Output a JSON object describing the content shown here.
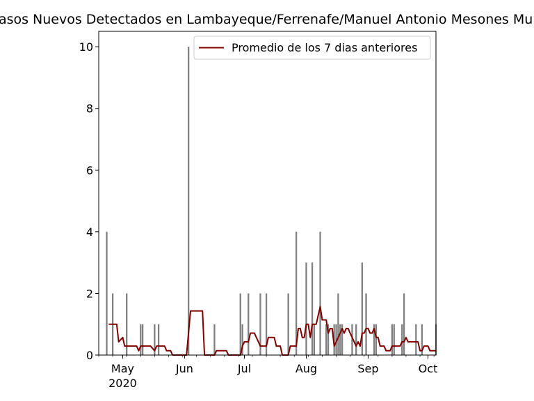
{
  "chart_data": {
    "type": "bar",
    "title": "Casos Nuevos Detectados en Lambayeque/Ferrenafe/Manuel Antonio Mesones Muro",
    "xlabel": "",
    "ylabel": "",
    "x_range": [
      "2020-04-19",
      "2020-10-05"
    ],
    "ylim": [
      0,
      10.5
    ],
    "y_ticks": [
      "0",
      "2",
      "4",
      "6",
      "8",
      "10"
    ],
    "x_ticks": [
      {
        "date": "2020-05-01",
        "label": "May",
        "sublabel": "2020"
      },
      {
        "date": "2020-06-01",
        "label": "Jun",
        "sublabel": ""
      },
      {
        "date": "2020-07-01",
        "label": "Jul",
        "sublabel": ""
      },
      {
        "date": "2020-08-01",
        "label": "Aug",
        "sublabel": ""
      },
      {
        "date": "2020-09-01",
        "label": "Sep",
        "sublabel": ""
      },
      {
        "date": "2020-10-01",
        "label": "Oct",
        "sublabel": ""
      }
    ],
    "bar_color": "#808080",
    "line_color": "#800000",
    "legend": {
      "position": "upper right",
      "entries": [
        "Promedio de los 7 dias anteriores"
      ]
    },
    "series": [
      {
        "type": "bar",
        "points": [
          [
            "2020-04-23",
            4
          ],
          [
            "2020-04-26",
            2
          ],
          [
            "2020-05-03",
            2
          ],
          [
            "2020-05-10",
            1
          ],
          [
            "2020-05-11",
            1
          ],
          [
            "2020-05-17",
            1
          ],
          [
            "2020-05-19",
            1
          ],
          [
            "2020-06-03",
            10
          ],
          [
            "2020-06-16",
            1
          ],
          [
            "2020-06-29",
            2
          ],
          [
            "2020-06-30",
            1
          ],
          [
            "2020-07-03",
            2
          ],
          [
            "2020-07-09",
            2
          ],
          [
            "2020-07-12",
            2
          ],
          [
            "2020-07-23",
            2
          ],
          [
            "2020-07-27",
            4
          ],
          [
            "2020-08-01",
            3
          ],
          [
            "2020-08-04",
            3
          ],
          [
            "2020-08-05",
            1
          ],
          [
            "2020-08-08",
            4
          ],
          [
            "2020-08-11",
            1
          ],
          [
            "2020-08-12",
            1
          ],
          [
            "2020-08-15",
            1
          ],
          [
            "2020-08-16",
            1
          ],
          [
            "2020-08-17",
            2
          ],
          [
            "2020-08-18",
            1
          ],
          [
            "2020-08-19",
            1
          ],
          [
            "2020-08-24",
            1
          ],
          [
            "2020-08-26",
            1
          ],
          [
            "2020-08-29",
            3
          ],
          [
            "2020-08-31",
            2
          ],
          [
            "2020-09-04",
            1
          ],
          [
            "2020-09-05",
            1
          ],
          [
            "2020-09-13",
            1
          ],
          [
            "2020-09-14",
            1
          ],
          [
            "2020-09-18",
            1
          ],
          [
            "2020-09-19",
            2
          ],
          [
            "2020-09-25",
            1
          ],
          [
            "2020-09-28",
            1
          ],
          [
            "2020-10-05",
            1
          ]
        ]
      },
      {
        "type": "line",
        "name": "Promedio de los 7 dias anteriores",
        "points": [
          [
            "2020-04-24",
            1.0
          ],
          [
            "2020-04-28",
            1.0
          ],
          [
            "2020-04-29",
            0.43
          ],
          [
            "2020-05-01",
            0.57
          ],
          [
            "2020-05-02",
            0.29
          ],
          [
            "2020-05-08",
            0.29
          ],
          [
            "2020-05-09",
            0.14
          ],
          [
            "2020-05-10",
            0.29
          ],
          [
            "2020-05-15",
            0.29
          ],
          [
            "2020-05-17",
            0.14
          ],
          [
            "2020-05-18",
            0.29
          ],
          [
            "2020-05-22",
            0.29
          ],
          [
            "2020-05-23",
            0.14
          ],
          [
            "2020-05-25",
            0.14
          ],
          [
            "2020-05-26",
            0.0
          ],
          [
            "2020-06-02",
            0.0
          ],
          [
            "2020-06-04",
            1.43
          ],
          [
            "2020-06-10",
            1.43
          ],
          [
            "2020-06-11",
            0.0
          ],
          [
            "2020-06-16",
            0.0
          ],
          [
            "2020-06-17",
            0.14
          ],
          [
            "2020-06-22",
            0.14
          ],
          [
            "2020-06-23",
            0.0
          ],
          [
            "2020-06-29",
            0.0
          ],
          [
            "2020-06-30",
            0.29
          ],
          [
            "2020-07-01",
            0.43
          ],
          [
            "2020-07-03",
            0.43
          ],
          [
            "2020-07-04",
            0.71
          ],
          [
            "2020-07-06",
            0.71
          ],
          [
            "2020-07-08",
            0.43
          ],
          [
            "2020-07-09",
            0.29
          ],
          [
            "2020-07-12",
            0.29
          ],
          [
            "2020-07-13",
            0.57
          ],
          [
            "2020-07-16",
            0.57
          ],
          [
            "2020-07-17",
            0.29
          ],
          [
            "2020-07-19",
            0.29
          ],
          [
            "2020-07-20",
            0.0
          ],
          [
            "2020-07-23",
            0.0
          ],
          [
            "2020-07-24",
            0.29
          ],
          [
            "2020-07-27",
            0.29
          ],
          [
            "2020-07-28",
            0.86
          ],
          [
            "2020-07-29",
            0.86
          ],
          [
            "2020-07-30",
            0.57
          ],
          [
            "2020-07-31",
            0.57
          ],
          [
            "2020-08-01",
            1.0
          ],
          [
            "2020-08-02",
            1.0
          ],
          [
            "2020-08-03",
            0.57
          ],
          [
            "2020-08-04",
            1.0
          ],
          [
            "2020-08-06",
            1.0
          ],
          [
            "2020-08-07",
            1.29
          ],
          [
            "2020-08-08",
            1.57
          ],
          [
            "2020-08-09",
            1.14
          ],
          [
            "2020-08-11",
            1.14
          ],
          [
            "2020-08-12",
            0.71
          ],
          [
            "2020-08-13",
            0.86
          ],
          [
            "2020-08-14",
            0.86
          ],
          [
            "2020-08-15",
            0.29
          ],
          [
            "2020-08-16",
            0.43
          ],
          [
            "2020-08-17",
            0.57
          ],
          [
            "2020-08-18",
            0.71
          ],
          [
            "2020-08-19",
            0.86
          ],
          [
            "2020-08-20",
            0.71
          ],
          [
            "2020-08-21",
            0.86
          ],
          [
            "2020-08-22",
            0.86
          ],
          [
            "2020-08-23",
            0.71
          ],
          [
            "2020-08-24",
            0.57
          ],
          [
            "2020-08-25",
            0.43
          ],
          [
            "2020-08-26",
            0.29
          ],
          [
            "2020-08-27",
            0.43
          ],
          [
            "2020-08-28",
            0.29
          ],
          [
            "2020-08-29",
            0.71
          ],
          [
            "2020-08-30",
            0.71
          ],
          [
            "2020-08-31",
            0.86
          ],
          [
            "2020-09-01",
            0.86
          ],
          [
            "2020-09-02",
            0.71
          ],
          [
            "2020-09-03",
            0.71
          ],
          [
            "2020-09-04",
            0.86
          ],
          [
            "2020-09-05",
            0.57
          ],
          [
            "2020-09-06",
            0.57
          ],
          [
            "2020-09-07",
            0.29
          ],
          [
            "2020-09-09",
            0.29
          ],
          [
            "2020-09-10",
            0.14
          ],
          [
            "2020-09-12",
            0.14
          ],
          [
            "2020-09-13",
            0.29
          ],
          [
            "2020-09-17",
            0.29
          ],
          [
            "2020-09-18",
            0.43
          ],
          [
            "2020-09-19",
            0.43
          ],
          [
            "2020-09-20",
            0.57
          ],
          [
            "2020-09-21",
            0.43
          ],
          [
            "2020-09-26",
            0.43
          ],
          [
            "2020-09-27",
            0.14
          ],
          [
            "2020-09-28",
            0.14
          ],
          [
            "2020-09-29",
            0.29
          ],
          [
            "2020-10-01",
            0.29
          ],
          [
            "2020-10-02",
            0.14
          ],
          [
            "2020-10-05",
            0.14
          ]
        ]
      }
    ]
  }
}
